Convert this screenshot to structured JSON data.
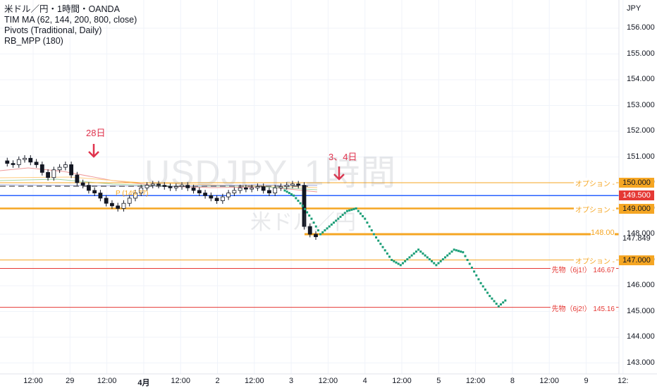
{
  "legend": {
    "symbol": "米ドル／円・1時間・OANDA",
    "indicator_1": "TIM MA (62, 144, 200, 800, close)",
    "indicator_2": "Pivots (Traditional, Daily)",
    "indicator_3": "RB_MPP (180)"
  },
  "watermark": {
    "main": "USDJPY, 1時間",
    "sub": "米ドル／円"
  },
  "annotations": {
    "date_1": "28日",
    "date_2": "3、4日"
  },
  "colors": {
    "option": "#f5a623",
    "futures": "#e53935",
    "blue": "#2962ff",
    "forecast": "#1b9e77",
    "annot": "#e0334d"
  },
  "chart_data": {
    "type": "line",
    "currency": "JPY",
    "y_ticks": [
      "156.000",
      "155.000",
      "154.000",
      "153.000",
      "152.000",
      "151.000",
      "150.000",
      "149.000",
      "148.000",
      "147.000",
      "146.000",
      "145.000",
      "144.000",
      "143.000"
    ],
    "ylim": [
      142.8,
      156.6
    ],
    "x_ticks": [
      "12:00",
      "29",
      "12:00",
      "4月",
      "12:00",
      "2",
      "12:00",
      "3",
      "12:00",
      "4",
      "12:00",
      "5",
      "12:00",
      "8",
      "12:00",
      "9",
      "12:"
    ],
    "levels": [
      {
        "label": "オプション",
        "price": 150.0,
        "tag": "150.000",
        "type": "option"
      },
      {
        "label": "",
        "price": 149.5,
        "tag": "149.500",
        "type": "blue"
      },
      {
        "label": "オプション",
        "price": 149.0,
        "tag": "149.000",
        "type": "option"
      },
      {
        "label": "",
        "price": 148.0,
        "tag": "148.00",
        "type": "option_thick"
      },
      {
        "label": "",
        "price": 147.849,
        "tag": "147.849",
        "type": "current"
      },
      {
        "label": "オプション",
        "price": 147.0,
        "tag": "147.000",
        "type": "option"
      },
      {
        "label": "先物（6j1!）",
        "price": 146.67,
        "tag": "146.67",
        "type": "futures"
      },
      {
        "label": "先物（6j2!）",
        "price": 145.16,
        "tag": "145.16",
        "type": "futures"
      }
    ],
    "pivot_label": "P (149.77)",
    "price_series": [
      150.85,
      150.75,
      150.7,
      150.9,
      150.95,
      150.8,
      150.7,
      150.4,
      150.2,
      150.5,
      150.6,
      150.7,
      150.3,
      150.0,
      149.9,
      149.7,
      149.6,
      149.4,
      149.2,
      149.1,
      149.0,
      149.2,
      149.4,
      149.6,
      149.8,
      149.9,
      149.95,
      149.9,
      149.85,
      149.8,
      149.85,
      149.9,
      149.8,
      149.7,
      149.6,
      149.5,
      149.4,
      149.3,
      149.45,
      149.6,
      149.7,
      149.8,
      149.75,
      149.8,
      149.85,
      149.7,
      149.6,
      149.8,
      149.85,
      149.9,
      149.95,
      149.9,
      148.3,
      148.0,
      147.9
    ],
    "forecast_series": [
      149.7,
      149.5,
      149.1,
      148.6,
      148.0,
      148.3,
      148.6,
      148.9,
      149.0,
      148.6,
      148.0,
      147.5,
      147.0,
      146.8,
      147.1,
      147.4,
      147.1,
      146.8,
      147.1,
      147.4,
      147.3,
      146.7,
      146.1,
      145.6,
      145.2,
      145.5
    ]
  }
}
